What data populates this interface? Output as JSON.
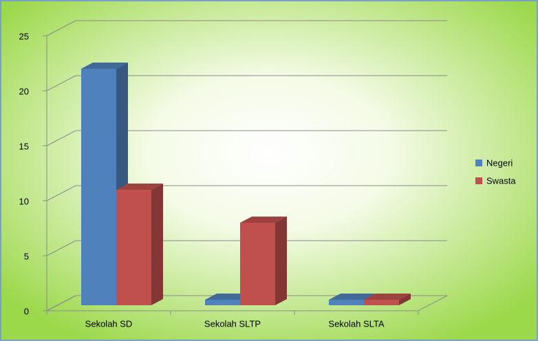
{
  "chart_data": {
    "type": "bar3d",
    "categories": [
      "Sekolah SD",
      "Sekolah SLTP",
      "Sekolah SLTA"
    ],
    "series": [
      {
        "name": "Negeri",
        "color": "#4f81bd",
        "values": [
          22,
          1,
          1
        ]
      },
      {
        "name": "Swasta",
        "color": "#c0504d",
        "values": [
          11,
          8,
          1
        ]
      }
    ],
    "ylim": [
      0,
      25
    ],
    "yticks": [
      0,
      5,
      10,
      15,
      20,
      25
    ],
    "grid": true,
    "legend": "right"
  }
}
